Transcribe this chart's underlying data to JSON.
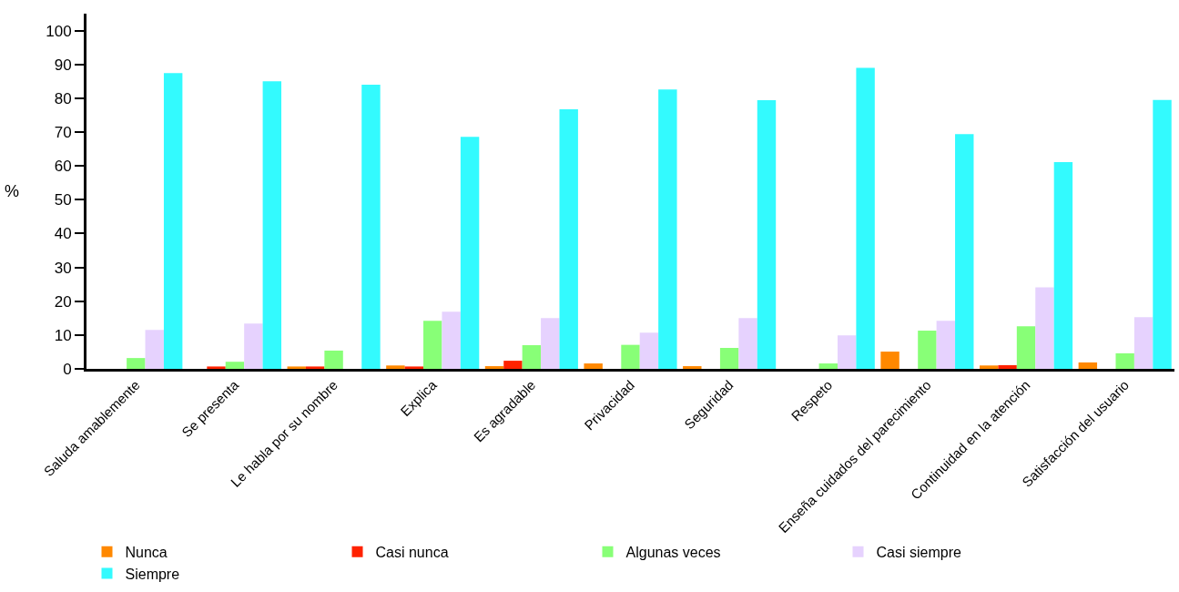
{
  "chart_data": {
    "type": "bar",
    "ylabel": "%",
    "categories": [
      "Saluda amablemente",
      "Se presenta",
      "Le habla por su nombre",
      "Explica",
      "Es agradable",
      "Privacidad",
      "Seguridad",
      "Respeto",
      "Enseña cuidados del parecimiento",
      "Continuidad en la atención",
      "Satisfacción del usuario"
    ],
    "series": [
      {
        "name": "Nunca",
        "color": "#ff8800",
        "values": [
          0,
          0,
          0.7,
          1,
          0.8,
          1.6,
          0.8,
          0,
          5.1,
          1,
          1.9
        ]
      },
      {
        "name": "Casi nunca",
        "color": "#ff2200",
        "values": [
          0,
          0.7,
          0.7,
          0.7,
          2.4,
          0,
          0,
          0,
          0,
          1.1,
          0
        ]
      },
      {
        "name": "Algunas veces",
        "color": "#88ff77",
        "values": [
          3.2,
          2.1,
          5.4,
          14.2,
          7,
          7.1,
          6.2,
          1.6,
          11.3,
          12.6,
          4.6
        ]
      },
      {
        "name": "Casi siempre",
        "color": "#e6d2fe",
        "values": [
          11.5,
          13.4,
          0,
          16.9,
          15,
          10.7,
          15,
          9.9,
          14.2,
          24.1,
          15.3
        ]
      },
      {
        "name": "Siempre",
        "color": "#33fafe",
        "values": [
          87.4,
          85,
          84,
          68.6,
          76.7,
          82.6,
          79.4,
          89,
          69.4,
          61.1,
          79.5
        ]
      }
    ],
    "ylim": [
      0,
      105
    ],
    "yticks": [
      0,
      10,
      20,
      30,
      40,
      50,
      60,
      70,
      80,
      90,
      100
    ],
    "grid": false,
    "legend": "bottom"
  }
}
